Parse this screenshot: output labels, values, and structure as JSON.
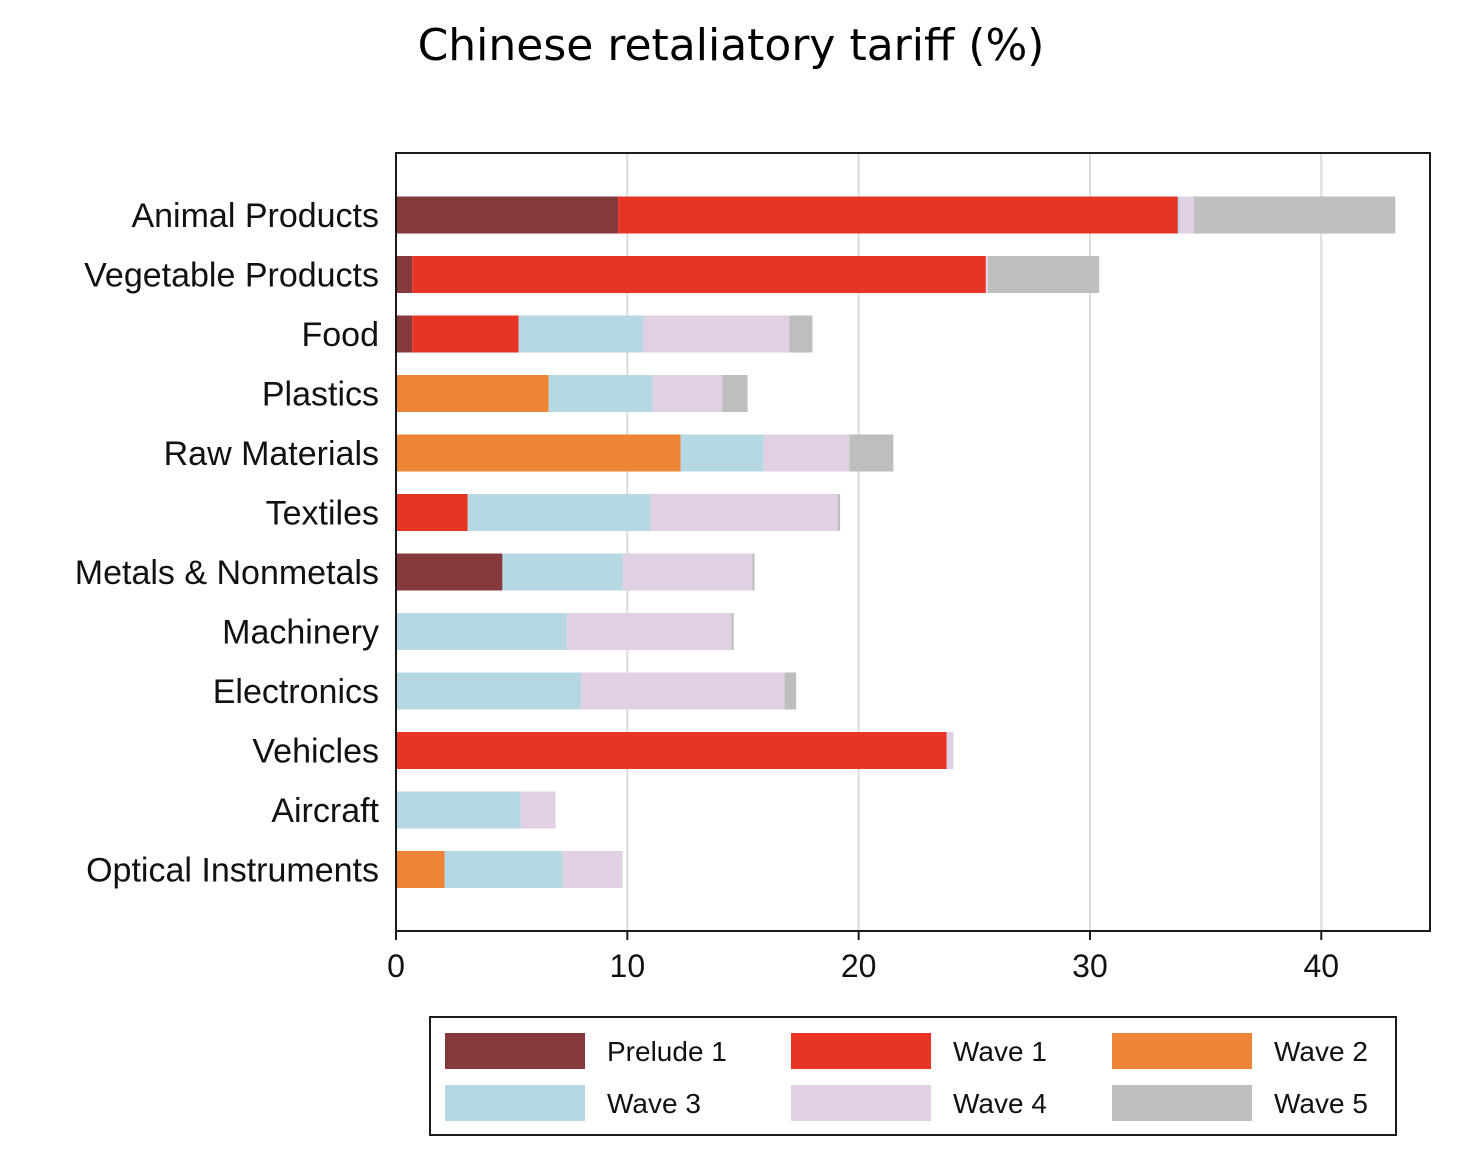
{
  "chart_data": {
    "type": "bar",
    "orientation": "horizontal",
    "stacked": true,
    "title": "Chinese retaliatory tariff (%)",
    "xlabel": "",
    "ylabel": "",
    "xlim": [
      0,
      44.7
    ],
    "xticks": [
      0,
      10,
      20,
      30,
      40
    ],
    "grid": true,
    "legend_position": "bottom",
    "categories": [
      "Animal Products",
      "Vegetable Products",
      "Food",
      "Plastics",
      "Raw Materials",
      "Textiles",
      "Metals & Nonmetals",
      "Machinery",
      "Electronics",
      "Vehicles",
      "Aircraft",
      "Optical Instruments"
    ],
    "series": [
      {
        "name": "Prelude 1",
        "color": "#843a3d",
        "values": [
          9.6,
          0.7,
          0.7,
          0,
          0,
          0,
          4.6,
          0,
          0,
          0,
          0,
          0
        ]
      },
      {
        "name": "Wave 1",
        "color": "#e83425",
        "values": [
          24.2,
          24.8,
          4.6,
          0,
          0,
          3.1,
          0,
          0,
          0,
          23.8,
          0,
          0
        ]
      },
      {
        "name": "Wave 2",
        "color": "#ee8536",
        "values": [
          0,
          0,
          0,
          6.6,
          12.3,
          0,
          0,
          0,
          0,
          0,
          0,
          2.1
        ]
      },
      {
        "name": "Wave 3",
        "color": "#b6d8e3",
        "values": [
          0.1,
          0,
          5.4,
          4.5,
          3.6,
          7.9,
          5.2,
          7.4,
          8,
          0,
          5.4,
          5.1
        ]
      },
      {
        "name": "Wave 4",
        "color": "#e1cfe3",
        "values": [
          0.6,
          0.1,
          6.3,
          3,
          3.7,
          8.1,
          5.6,
          7.1,
          8.8,
          0.3,
          1.5,
          2.6
        ]
      },
      {
        "name": "Wave 5",
        "color": "#bebebe",
        "values": [
          8.7,
          4.8,
          1,
          1.1,
          1.9,
          0.1,
          0.1,
          0.1,
          0.5,
          0,
          0,
          0
        ]
      }
    ]
  }
}
